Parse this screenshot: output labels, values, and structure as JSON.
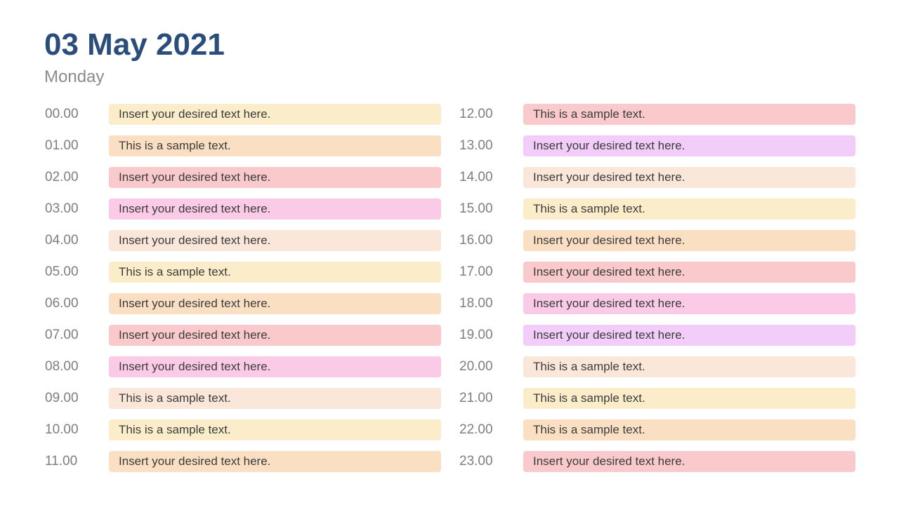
{
  "page": {
    "title": "03 May 2021",
    "subtitle": "Monday"
  },
  "colors": {
    "title_text": "#2A4D7C",
    "subtitle_text": "#8B8B8B",
    "time_label_text": "#7E7E7E",
    "entry_text": "#3C3C3C",
    "palette": {
      "cream": "#FBEDC9",
      "peach": "#FBDFC3",
      "salmon": "#F9C9CB",
      "pink": "#FBCAE6",
      "blush": "#FAE7DA",
      "violet": "#F2CDFA"
    }
  },
  "schedule": {
    "left_column": [
      {
        "time": "00.00",
        "text": "Insert your desired text here.",
        "color": "cream"
      },
      {
        "time": "01.00",
        "text": "This is a sample text.",
        "color": "peach"
      },
      {
        "time": "02.00",
        "text": "Insert your desired text here.",
        "color": "salmon"
      },
      {
        "time": "03.00",
        "text": "Insert your desired text here.",
        "color": "pink"
      },
      {
        "time": "04.00",
        "text": "Insert your desired text here.",
        "color": "blush"
      },
      {
        "time": "05.00",
        "text": "This is a sample text.",
        "color": "cream"
      },
      {
        "time": "06.00",
        "text": "Insert your desired text here.",
        "color": "peach"
      },
      {
        "time": "07.00",
        "text": "Insert your desired text here.",
        "color": "salmon"
      },
      {
        "time": "08.00",
        "text": "Insert your desired text here.",
        "color": "pink"
      },
      {
        "time": "09.00",
        "text": "This is a sample text.",
        "color": "blush"
      },
      {
        "time": "10.00",
        "text": "This is a sample text.",
        "color": "cream"
      },
      {
        "time": "11.00",
        "text": "Insert your desired text here.",
        "color": "peach"
      }
    ],
    "right_column": [
      {
        "time": "12.00",
        "text": "This is a sample text.",
        "color": "salmon"
      },
      {
        "time": "13.00",
        "text": "Insert your desired text here.",
        "color": "violet"
      },
      {
        "time": "14.00",
        "text": "Insert your desired text here.",
        "color": "blush"
      },
      {
        "time": "15.00",
        "text": "This is a sample text.",
        "color": "cream"
      },
      {
        "time": "16.00",
        "text": "Insert your desired text here.",
        "color": "peach"
      },
      {
        "time": "17.00",
        "text": "Insert your desired text here.",
        "color": "salmon"
      },
      {
        "time": "18.00",
        "text": "Insert your desired text here.",
        "color": "pink"
      },
      {
        "time": "19.00",
        "text": "Insert your desired text here.",
        "color": "violet"
      },
      {
        "time": "20.00",
        "text": "This is a sample text.",
        "color": "blush"
      },
      {
        "time": "21.00",
        "text": "This is a sample text.",
        "color": "cream"
      },
      {
        "time": "22.00",
        "text": "This is a sample text.",
        "color": "peach"
      },
      {
        "time": "23.00",
        "text": "Insert your desired text here.",
        "color": "salmon"
      }
    ]
  }
}
